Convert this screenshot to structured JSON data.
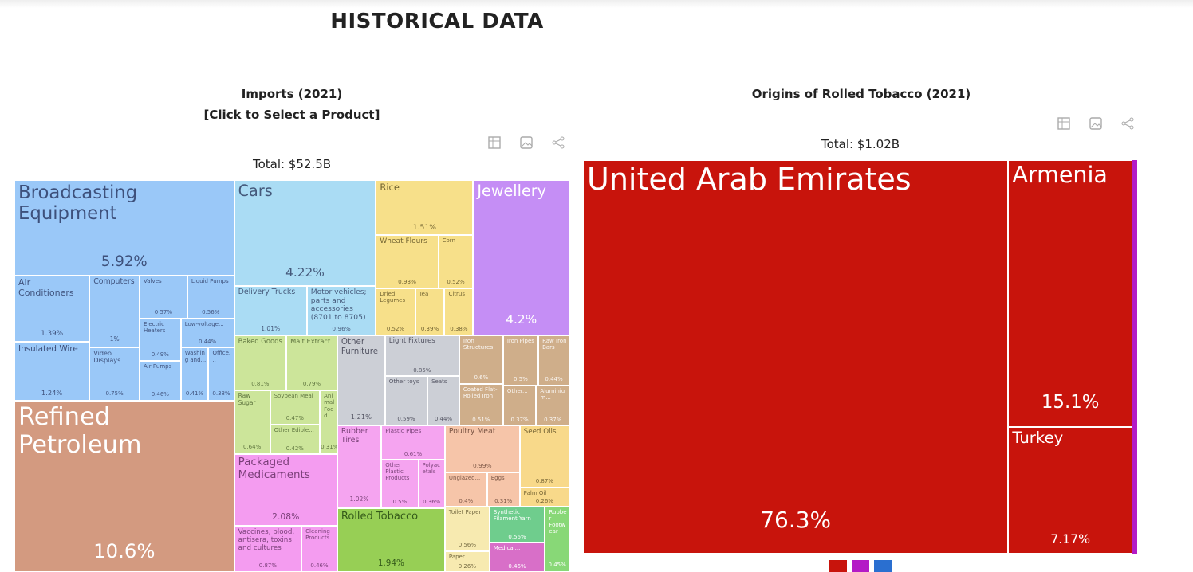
{
  "header": {
    "title": "HISTORICAL DATA"
  },
  "chart_data": [
    {
      "type": "treemap",
      "title": "Imports (2021)",
      "subtitle": "[Click to Select a Product]",
      "total": "Total: $52.5B",
      "groups": [
        {
          "color": "#9ac8f8",
          "text_color": "rgba(0,0,40,0.6)",
          "labels": [
            "Broadcasting Equipment",
            "Air Conditioners",
            "Insulated Wire",
            "Computers",
            "Video Displays",
            "Valves",
            "Liquid Pumps",
            "Electric Heaters",
            "Air Pumps",
            "Low-voltage...",
            "Washing and...",
            "Office..."
          ],
          "values": [
            5.92,
            1.39,
            1.24,
            1,
            0.75,
            0.57,
            0.56,
            0.49,
            0.46,
            0.44,
            0.41,
            0.38
          ],
          "value_labels": [
            "5.92%",
            "1.39%",
            "1.24%",
            "1%",
            "0.75%",
            "0.57%",
            "0.56%",
            "0.49%",
            "0.46%",
            "0.44%",
            "0.41%",
            "0.38%"
          ]
        },
        {
          "color": "#d39a80",
          "text_color": "#ffffff",
          "labels": [
            "Refined Petroleum"
          ],
          "values": [
            10.6
          ],
          "value_labels": [
            "10.6%"
          ]
        },
        {
          "color": "#aadcf4",
          "text_color": "rgba(0,0,40,0.6)",
          "labels": [
            "Cars",
            "Delivery Trucks",
            "Motor vehicles; parts and accessories (8701 to 8705)"
          ],
          "values": [
            4.22,
            1.01,
            0.96
          ],
          "value_labels": [
            "4.22%",
            "1.01%",
            "0.96%"
          ]
        },
        {
          "color": "#f7e08a",
          "text_color": "rgba(40,30,0,0.65)",
          "labels": [
            "Rice",
            "Wheat Flours",
            "Corn",
            "Dried Legumes",
            "Tea",
            "Citrus"
          ],
          "values": [
            1.51,
            0.93,
            0.52,
            0.52,
            0.39,
            0.38
          ],
          "value_labels": [
            "1.51%",
            "0.93%",
            "0.52%",
            "0.52%",
            "0.39%",
            "0.38%"
          ]
        },
        {
          "color": "#c58ef5",
          "text_color": "#ffffff",
          "labels": [
            "Jewellery"
          ],
          "values": [
            4.2
          ],
          "value_labels": [
            "4.2%"
          ]
        },
        {
          "color": "#f49cf0",
          "text_color": "rgba(40,0,40,0.6)",
          "labels": [
            "Packaged Medicaments",
            "Vaccines, blood, antisera, toxins and cultures",
            "Cleaning Products"
          ],
          "values": [
            2.08,
            0.87,
            0.46
          ],
          "value_labels": [
            "2.08%",
            "0.87%",
            "0.46%"
          ]
        },
        {
          "color": "#cce59a",
          "text_color": "rgba(20,40,0,0.6)",
          "labels": [
            "Baked Goods",
            "Malt Extract",
            "Raw Sugar",
            "Soybean Meal",
            "Other Edible...",
            "Animal Food"
          ],
          "values": [
            0.81,
            0.79,
            0.64,
            0.47,
            0.42,
            0.31
          ],
          "value_labels": [
            "0.81%",
            "0.79%",
            "0.64%",
            "0.47%",
            "0.42%",
            "0.31%"
          ]
        },
        {
          "color": "#cccfd6",
          "text_color": "rgba(0,0,20,0.6)",
          "labels": [
            "Other Furniture",
            "Light Fixtures",
            "Other toys",
            "Seats"
          ],
          "values": [
            1.21,
            0.85,
            0.59,
            0.44
          ],
          "value_labels": [
            "1.21%",
            "0.85%",
            "0.59%",
            "0.44%"
          ]
        },
        {
          "color": "#cfae8a",
          "text_color": "rgba(255,255,255,0.9)",
          "labels": [
            "Iron Structures",
            "Coated Flat-Rolled Iron",
            "Iron Pipes",
            "Raw Iron Bars",
            "Other...",
            "Aluminium..."
          ],
          "values": [
            0.6,
            0.51,
            0.5,
            0.44,
            0.37,
            0.37
          ],
          "value_labels": [
            "0.6%",
            "0.51%",
            "0.5%",
            "0.44%",
            "0.37%",
            "0.37%"
          ]
        },
        {
          "color": "#f6c5a9",
          "text_color": "rgba(40,10,0,0.6)",
          "labels": [
            "Poultry Meat",
            "Unglazed...",
            "Eggs"
          ],
          "values": [
            0.99,
            0.4,
            0.31
          ],
          "value_labels": [
            "0.99%",
            "0.4%",
            "0.31%"
          ]
        },
        {
          "color": "#f5a4f0",
          "text_color": "rgba(40,0,40,0.6)",
          "labels": [
            "Rubber Tires",
            "Plastic Pipes",
            "Other Plastic Products",
            "Polyacetals"
          ],
          "values": [
            1.02,
            0.61,
            0.5,
            0.36
          ],
          "value_labels": [
            "1.02%",
            "0.61%",
            "0.5%",
            "0.36%"
          ]
        },
        {
          "color": "#97cf55",
          "text_color": "rgba(10,40,0,0.7)",
          "labels": [
            "Rolled Tobacco"
          ],
          "values": [
            1.94
          ],
          "value_labels": [
            "1.94%"
          ]
        },
        {
          "color": "#6fcd8d",
          "text_color": "#ffffff",
          "labels": [
            "Synthetic Filament Yarn"
          ],
          "values": [
            0.56
          ],
          "value_labels": [
            "0.56%"
          ]
        },
        {
          "color": "#f8d98a",
          "text_color": "rgba(40,30,0,0.65)",
          "labels": [
            "Seed Oils",
            "Palm Oil"
          ],
          "values": [
            0.87,
            0.26
          ],
          "value_labels": [
            "0.87%",
            "0.26%"
          ]
        },
        {
          "color": "#f7eab0",
          "text_color": "rgba(40,30,0,0.65)",
          "labels": [
            "Toilet Paper",
            "Paper..."
          ],
          "values": [
            0.56,
            0.26
          ],
          "value_labels": [
            "0.56%",
            "0.26%"
          ]
        },
        {
          "color": "#d86fc8",
          "text_color": "#ffffff",
          "labels": [
            "Medical..."
          ],
          "values": [
            0.46
          ],
          "value_labels": [
            "0.46%"
          ]
        },
        {
          "color": "#88d877",
          "text_color": "#ffffff",
          "labels": [
            "Rubber Footwear"
          ],
          "values": [
            0.45
          ],
          "value_labels": [
            "0.45%"
          ]
        }
      ]
    },
    {
      "type": "treemap",
      "title": "Origins of Rolled Tobacco (2021)",
      "total": "Total: $1.02B",
      "groups": [
        {
          "color": "#c8140c",
          "text_color": "#ffffff",
          "labels": [
            "United Arab Emirates",
            "Armenia",
            "Turkey"
          ],
          "values": [
            76.3,
            15.1,
            7.17
          ],
          "value_labels": [
            "76.3%",
            "15.1%",
            "7.17%"
          ]
        }
      ]
    }
  ]
}
